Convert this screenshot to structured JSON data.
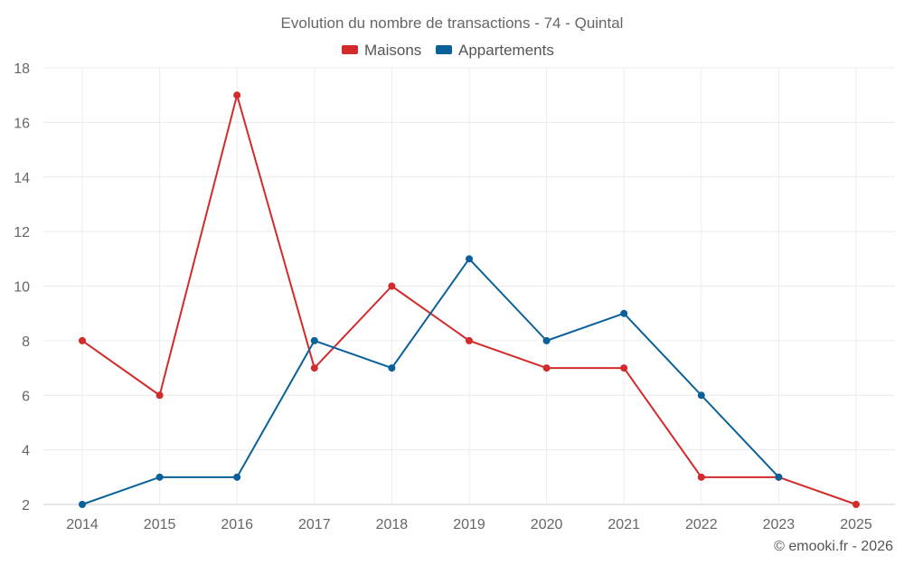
{
  "chart_data": {
    "type": "line",
    "title": "Evolution du nombre de transactions - 74 - Quintal",
    "categories": [
      "2014",
      "2015",
      "2016",
      "2017",
      "2018",
      "2019",
      "2020",
      "2021",
      "2022",
      "2023",
      "2025"
    ],
    "series": [
      {
        "name": "Maisons",
        "color": "#d22b2b",
        "values": [
          8,
          6,
          17,
          7,
          10,
          8,
          7,
          7,
          3,
          3,
          2
        ]
      },
      {
        "name": "Appartements",
        "color": "#0a6199",
        "values": [
          2,
          3,
          3,
          8,
          7,
          11,
          8,
          9,
          6,
          3,
          null
        ]
      }
    ],
    "ylim": [
      2,
      18
    ],
    "yticks": [
      2,
      4,
      6,
      8,
      10,
      12,
      14,
      16,
      18
    ],
    "grid": true,
    "legend_position": "top-center"
  },
  "credit": "© emooki.fr - 2026"
}
